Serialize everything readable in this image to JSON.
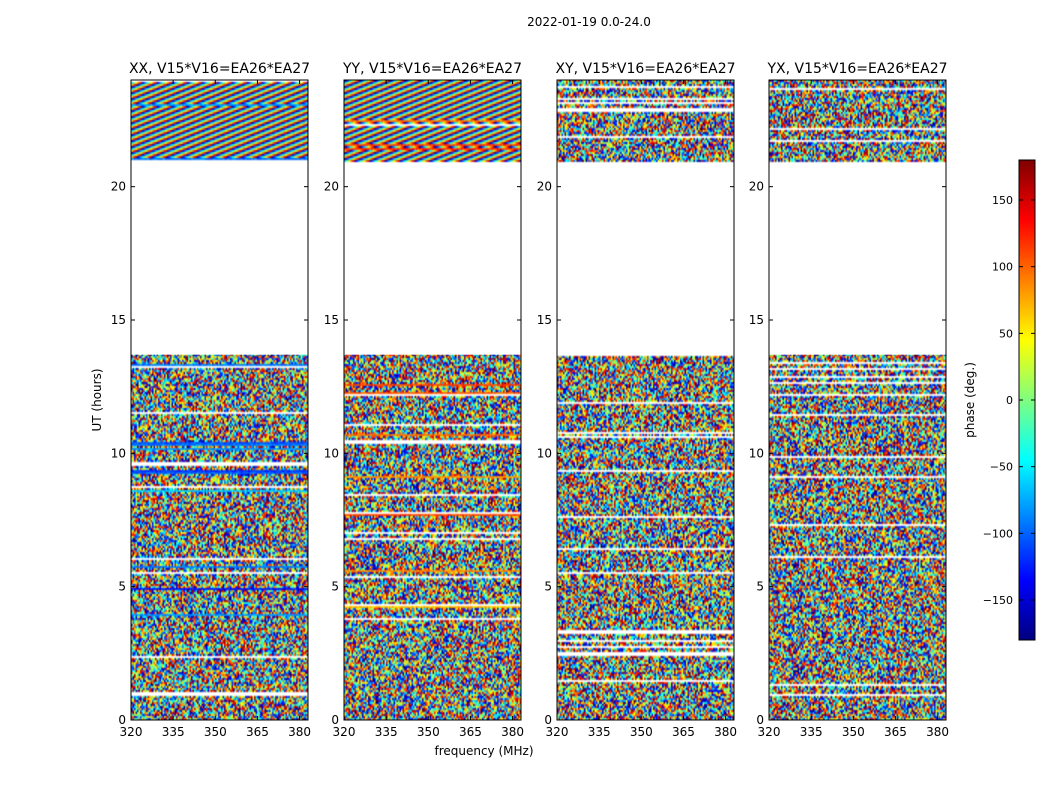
{
  "suptitle": "2022-01-19 0.0-24.0",
  "xlabel": "frequency (MHz)",
  "ylabel": "UT (hours)",
  "chart_data": {
    "type": "heatmap",
    "title": "2022-01-19 0.0-24.0",
    "xlabel": "frequency (MHz)",
    "ylabel": "UT (hours)",
    "xlim": [
      320,
      383
    ],
    "ylim": [
      0,
      24
    ],
    "xticks": [
      320,
      335,
      350,
      365,
      380
    ],
    "yticks": [
      0,
      5,
      10,
      15,
      20
    ],
    "colorbar": {
      "label": "phase (deg.)",
      "range": [
        -180,
        180
      ],
      "ticks": [
        150,
        100,
        50,
        0,
        -50,
        -100,
        -150
      ],
      "tick_labels": [
        "150",
        "100",
        "50",
        "0",
        "−50",
        "−100",
        "−150"
      ],
      "colormap": [
        "#00007f",
        "#0000ff",
        "#007fff",
        "#00ffff",
        "#7fff7f",
        "#ffff00",
        "#ff7f00",
        "#ff0000",
        "#7f0000"
      ]
    },
    "panels": [
      {
        "title": "XX, V15*V16=EA26*EA27"
      },
      {
        "title": "YY, V15*V16=EA26*EA27"
      },
      {
        "title": "XY, V15*V16=EA26*EA27"
      },
      {
        "title": "YX, V15*V16=EA26*EA27"
      }
    ],
    "data_gaps_ut": [
      [
        13.7,
        20.9
      ]
    ]
  }
}
